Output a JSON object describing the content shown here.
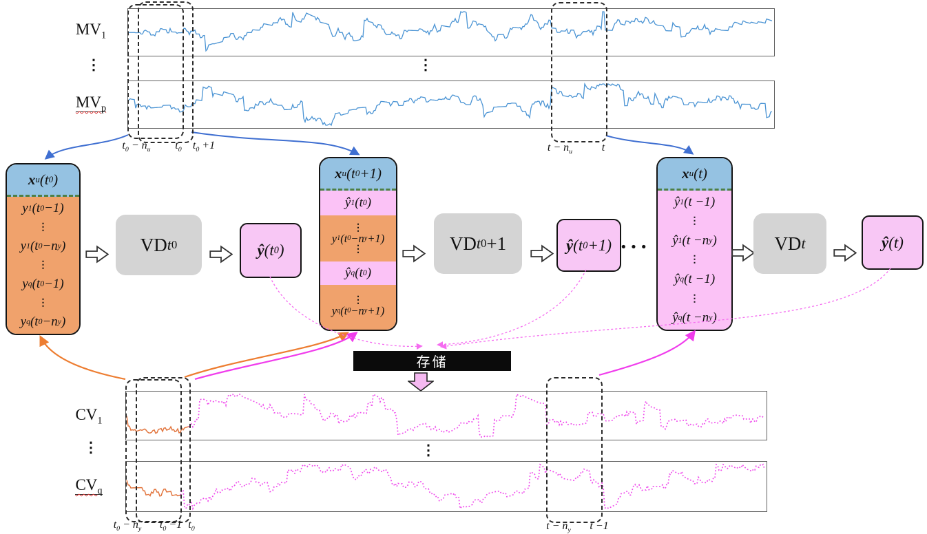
{
  "colors": {
    "signal_blue": "#4b94d4",
    "arrow_blue": "#3f6fd1",
    "header_blue": "#95c2e2",
    "body_orange": "#f0a26c",
    "band_pink": "#fbc2f6",
    "out_pink": "#f8c7f5",
    "signal_magenta": "#ef49ec",
    "arrow_magenta": "#f03cec",
    "dash_pink": "#f56cf0",
    "signal_orange": "#e2763f",
    "arrow_orange": "#ed7d31",
    "vd_gray": "#d4d4d4",
    "storage_black": "#0b0b0b",
    "storage_arrow_pink": "#f5b9f1"
  },
  "mv": {
    "row1_label": "MV<sub>1</sub>",
    "rowp_label": "MV<sub>p</sub>",
    "left_dots": "⋮",
    "mid_dots": "⋮",
    "ticks": {
      "t0_minus_nu": "t<sub>0</sub> − n<sub>u</sub>",
      "t0": "t<sub>0</sub>",
      "t0_plus_1": "t<sub>0</sub> +1",
      "t_minus_nu": "t − n<sub>u</sub>",
      "t": "t"
    }
  },
  "cv": {
    "row1_label": "CV<sub>1</sub>",
    "rowq_label": "CV<sub>q</sub>",
    "left_dots": "⋮",
    "mid_dots": "⋮",
    "ticks": {
      "t0_minus_ny": "t<sub>0</sub> − n<sub>y</sub>",
      "t0_minus_1": "t<sub>0</sub> −1",
      "t0": "t<sub>0</sub>",
      "t_minus_ny": "t − n<sub>y</sub>",
      "t_minus_1": "t −1"
    }
  },
  "vectors": {
    "v0": {
      "header": "<b>x</b><sub>u</sub>(t<sub>0</sub>)",
      "rows": [
        "y<sub>1</sub>(t<sub>0</sub> −1)",
        "⋮",
        "y<sub>1</sub>(t<sub>0</sub> −n<sub>y</sub>)",
        "⋮",
        "y<sub>q</sub>(t<sub>0</sub> −1)",
        "⋮",
        "y<sub>q</sub>(t<sub>0</sub> −n<sub>y</sub>)"
      ]
    },
    "v1": {
      "header": "<b>x</b><sub>u</sub>(t<sub>0</sub> +1)",
      "band0": "ŷ<sub>1</sub>(t<sub>0</sub>)",
      "band1": [
        "⋮",
        "y<sub>1</sub>(t<sub>0</sub>−n<sub>y</sub> +1)",
        "⋮"
      ],
      "band2": "ŷ<sub>q</sub>(t<sub>0</sub>)",
      "band3": [
        "⋮",
        "y<sub>q</sub>(t<sub>0</sub>−n<sub>y</sub> +1)"
      ]
    },
    "v2": {
      "header": "<b>x</b><sub>u</sub>(t)",
      "rows": [
        "ŷ<sub>1</sub>(t −1)",
        "⋮",
        "ŷ<sub>1</sub>(t −n<sub>y</sub>)",
        "⋮",
        "ŷ<sub>q</sub>(t −1)",
        "⋮",
        "ŷ<sub>q</sub>(t −n<sub>y</sub>)"
      ]
    }
  },
  "vd": {
    "t0": "VD <i>t</i><sub>0</sub>",
    "t0p1": "VD <i>t</i><sub>0</sub>+1",
    "t": "VD <i>t</i>"
  },
  "outputs": {
    "t0": "<b>ŷ</b> (t<sub>0</sub>)",
    "t0p1": "<b>ŷ</b>(t<sub>0</sub> +1)",
    "t": "<b>ŷ</b> (t)"
  },
  "ellipsis": "···",
  "storage_label": "存储"
}
